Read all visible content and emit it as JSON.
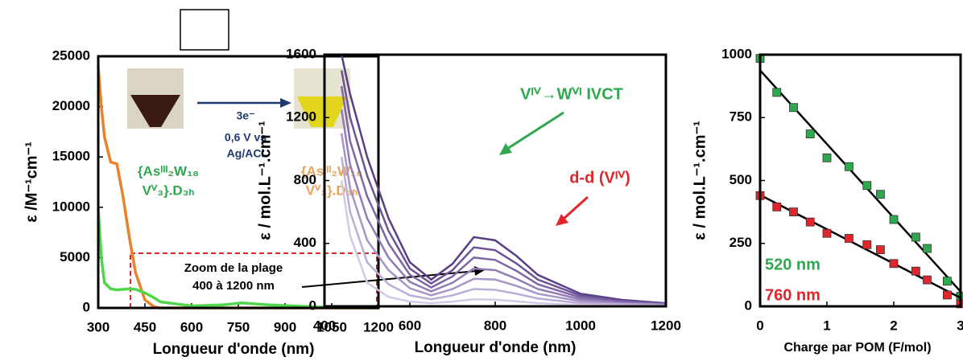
{
  "chart_data": [
    {
      "type": "line",
      "x_label": "Longueur d'onde (nm)",
      "y_label": "ε /M⁻¹cm⁻¹",
      "xlim": [
        300,
        1200
      ],
      "xticks": [
        300,
        450,
        600,
        750,
        900,
        1050,
        1200
      ],
      "ylim": [
        0,
        25000
      ],
      "yticks": [
        0,
        5000,
        10000,
        15000,
        20000,
        25000
      ],
      "x": [
        300,
        310,
        320,
        340,
        360,
        380,
        400,
        420,
        450,
        480,
        500,
        600,
        700,
        760,
        850,
        1000,
        1200
      ],
      "series": [
        {
          "color": "#e8832a",
          "values": [
            24000,
            20000,
            17000,
            14500,
            14300,
            11000,
            7000,
            3500,
            800,
            100,
            0,
            0,
            0,
            0,
            0,
            0,
            0
          ]
        },
        {
          "color": "#4fd64a",
          "values": [
            9800,
            5000,
            2500,
            1900,
            1800,
            1850,
            1900,
            1850,
            1500,
            1000,
            600,
            200,
            300,
            500,
            300,
            100,
            0
          ]
        }
      ],
      "annotations": [
        "3e⁻",
        "0,6 V vs",
        "Ag/ACl",
        "{Asᴵᴵᴵ₂W₁₈",
        "Vⱽ₃}.D₃ₕ",
        "{Asᴵᴵᴵ₂W₁₈",
        "Vⱽ₃}.D₃ₕ",
        "Zoom de la  plage",
        "400 à 1200 nm"
      ]
    },
    {
      "type": "line",
      "x_label": "Longueur d'onde (nm)",
      "y_label": "ε / mol.L⁻¹.cm⁻¹",
      "xlim": [
        400,
        1200
      ],
      "xticks": [
        400,
        600,
        800,
        1000,
        1200
      ],
      "ylim": [
        0,
        1600
      ],
      "yticks": [
        0,
        400,
        800,
        1200,
        1600
      ],
      "x": [
        440,
        460,
        500,
        550,
        600,
        650,
        700,
        750,
        800,
        850,
        900,
        1000,
        1100,
        1200
      ],
      "series": [
        {
          "color": "#5b3f86",
          "values": [
            1600,
            1350,
            950,
            560,
            280,
            170,
            270,
            440,
            420,
            320,
            200,
            80,
            40,
            20
          ]
        },
        {
          "color": "#6d5296",
          "values": [
            1500,
            1200,
            830,
            480,
            240,
            145,
            230,
            375,
            357,
            272,
            170,
            68,
            34,
            17
          ]
        },
        {
          "color": "#7f66a6",
          "values": [
            1400,
            1050,
            700,
            400,
            200,
            120,
            190,
            310,
            295,
            225,
            140,
            56,
            28,
            14
          ]
        },
        {
          "color": "#937cb6",
          "values": [
            1250,
            900,
            560,
            310,
            155,
            95,
            150,
            240,
            230,
            175,
            110,
            44,
            22,
            11
          ]
        },
        {
          "color": "#a795c6",
          "values": [
            1100,
            750,
            420,
            230,
            115,
            70,
            110,
            175,
            170,
            130,
            80,
            32,
            16,
            8
          ]
        },
        {
          "color": "#bcadd6",
          "values": [
            950,
            600,
            280,
            140,
            70,
            45,
            70,
            110,
            105,
            80,
            50,
            20,
            10,
            5
          ]
        },
        {
          "color": "#d3c9e5",
          "values": [
            800,
            450,
            150,
            60,
            30,
            20,
            30,
            45,
            42,
            32,
            20,
            8,
            4,
            2
          ]
        }
      ],
      "annotations": [
        "Vᴵⱽ→Wⱽᴵ IVCT",
        "d-d (Vᴵⱽ)"
      ]
    },
    {
      "type": "scatter",
      "x_label": "Charge par POM (F/mol)",
      "y_label": "ε / mol.L⁻¹.cm⁻¹",
      "xlim": [
        0,
        3
      ],
      "xticks": [
        0,
        1,
        2,
        3
      ],
      "ylim": [
        0,
        1000
      ],
      "yticks": [
        0,
        250,
        500,
        750,
        1000
      ],
      "x": [
        0,
        0.25,
        0.5,
        0.75,
        1,
        1.33,
        1.6,
        1.8,
        2,
        2.33,
        2.5,
        2.8,
        3
      ],
      "series": [
        {
          "name": "520 nm",
          "color": "#2fa84f",
          "values": [
            985,
            850,
            790,
            685,
            590,
            555,
            480,
            445,
            345,
            275,
            230,
            100,
            40
          ]
        },
        {
          "name": "760 nm",
          "color": "#e0262b",
          "values": [
            440,
            395,
            375,
            335,
            290,
            270,
            245,
            225,
            170,
            140,
            105,
            45,
            10
          ]
        }
      ]
    }
  ]
}
